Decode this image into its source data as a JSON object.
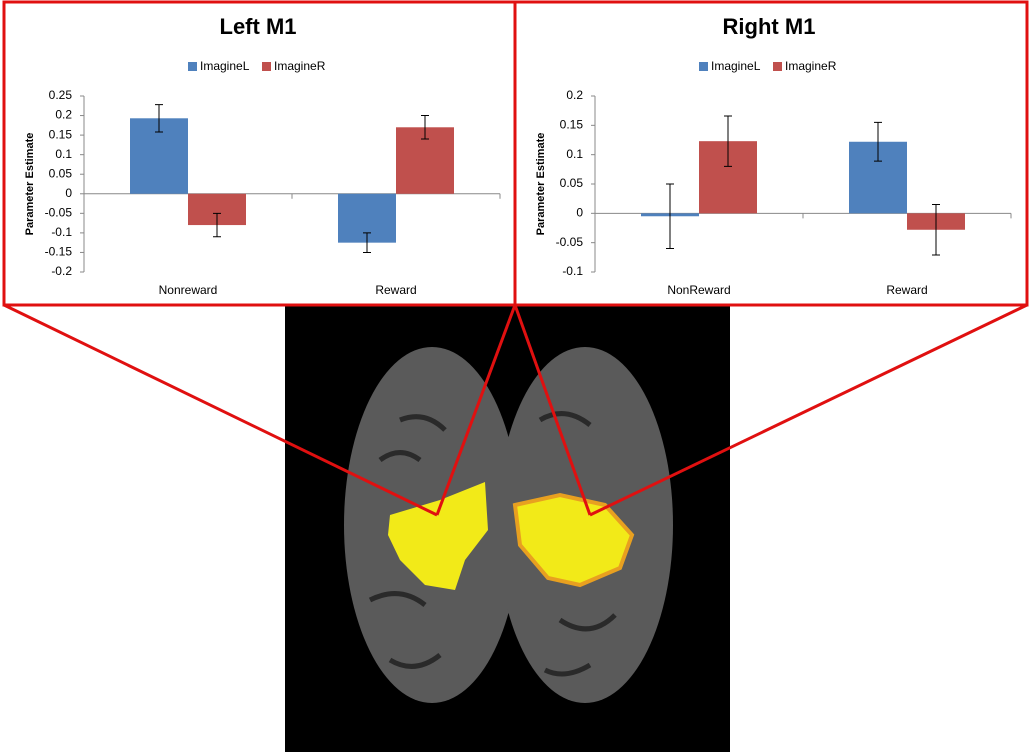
{
  "chart_data": [
    {
      "type": "bar",
      "title": "Left M1",
      "y_label": "Parameter Estimate",
      "categories": [
        "Nonreward",
        "Reward"
      ],
      "series": [
        {
          "name": "ImagineL",
          "color": "#4f81bd",
          "values": [
            0.193,
            -0.125
          ],
          "errors": [
            0.035,
            0.025
          ]
        },
        {
          "name": "ImagineR",
          "color": "#c0504d",
          "values": [
            -0.08,
            0.17
          ],
          "errors": [
            0.03,
            0.03
          ]
        }
      ],
      "ylim": [
        -0.2,
        0.25
      ],
      "yticks": [
        -0.2,
        -0.15,
        -0.1,
        -0.05,
        0,
        0.05,
        0.1,
        0.15,
        0.2,
        0.25
      ]
    },
    {
      "type": "bar",
      "title": "Right M1",
      "y_label": "Parameter Estimate",
      "categories": [
        "NonReward",
        "Reward"
      ],
      "series": [
        {
          "name": "ImagineL",
          "color": "#4f81bd",
          "values": [
            -0.005,
            0.122
          ],
          "errors": [
            0.055,
            0.033
          ]
        },
        {
          "name": "ImagineR",
          "color": "#c0504d",
          "values": [
            0.123,
            -0.028
          ],
          "errors": [
            0.043,
            0.043
          ]
        }
      ],
      "ylim": [
        -0.1,
        0.2
      ],
      "yticks": [
        -0.1,
        -0.05,
        0,
        0.05,
        0.1,
        0.15,
        0.2
      ]
    }
  ]
}
